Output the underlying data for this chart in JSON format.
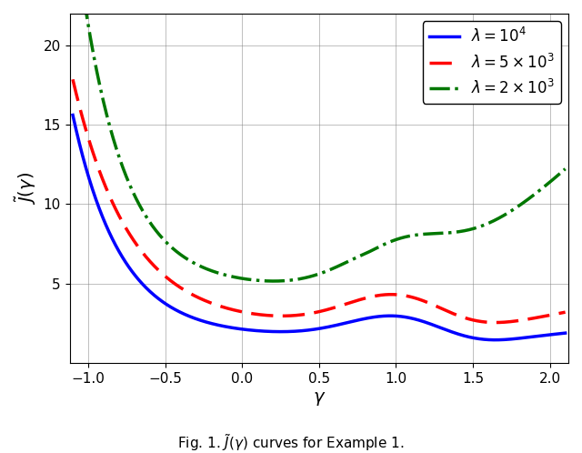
{
  "xlabel": "$\\gamma$",
  "ylabel": "$\\tilde{J}(\\gamma)$",
  "xlim": [
    -1.12,
    2.12
  ],
  "ylim": [
    0,
    22
  ],
  "yticks": [
    5,
    10,
    15,
    20
  ],
  "xticks": [
    -1.0,
    -0.5,
    0.0,
    0.5,
    1.0,
    1.5,
    2.0
  ],
  "caption": "Fig. 1. $\\tilde{J}(\\gamma)$ curves for Example 1.",
  "lines": [
    {
      "label": "$\\lambda = 10^4$",
      "color": "#0000ff",
      "linestyle": "solid",
      "linewidth": 2.5
    },
    {
      "label": "$\\lambda = 5 \\times 10^3$",
      "color": "#ff0000",
      "linestyle": "dashed",
      "linewidth": 2.5
    },
    {
      "label": "$\\lambda = 2 \\times 10^3$",
      "color": "#007700",
      "linestyle": "dashdot",
      "linewidth": 2.5
    }
  ],
  "legend_loc": "upper right",
  "grid": true,
  "background_color": "#ffffff",
  "xlabel_fontsize": 14,
  "ylabel_fontsize": 14,
  "legend_fontsize": 12,
  "tick_fontsize": 11
}
